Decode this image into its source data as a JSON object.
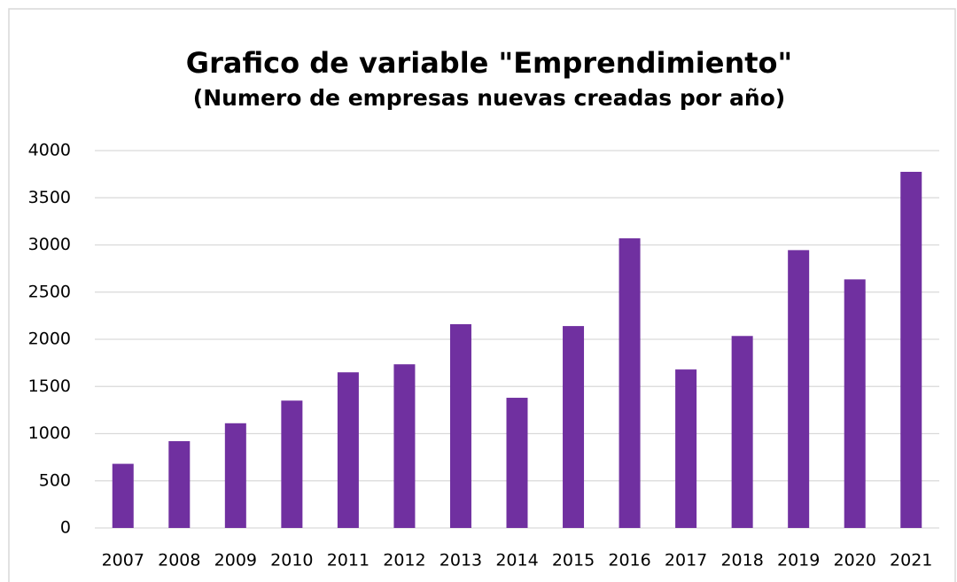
{
  "chart_data": {
    "type": "bar",
    "title": "Grafico de variable \"Emprendimiento\"",
    "subtitle": "(Numero de empresas nuevas creadas por año)",
    "categories": [
      "2007",
      "2008",
      "2009",
      "2010",
      "2011",
      "2012",
      "2013",
      "2014",
      "2015",
      "2016",
      "2017",
      "2018",
      "2019",
      "2020",
      "2021"
    ],
    "values": [
      680,
      920,
      1110,
      1350,
      1650,
      1735,
      2160,
      1380,
      2140,
      3070,
      1680,
      2035,
      2945,
      2635,
      3775
    ],
    "color": "#7030a0",
    "ylim": [
      0,
      4000
    ],
    "yticks": [
      0,
      500,
      1000,
      1500,
      2000,
      2500,
      3000,
      3500,
      4000
    ],
    "grid": true
  }
}
